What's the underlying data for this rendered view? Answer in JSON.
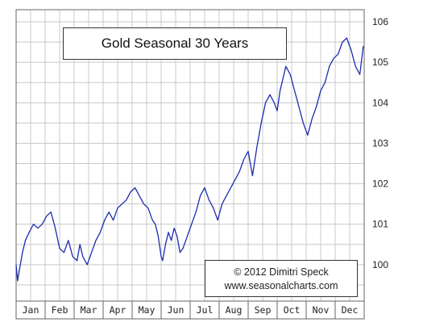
{
  "chart_data": {
    "type": "line",
    "title": "Gold Seasonal 30 Years",
    "credit_line1": "© 2012  Dimitri Speck",
    "credit_line2": "www.seasonalcharts.com",
    "xlabel": "",
    "ylabel": "",
    "categories": [
      "Jan",
      "Feb",
      "Mar",
      "Apr",
      "May",
      "Jun",
      "Jul",
      "Aug",
      "Sep",
      "Oct",
      "Nov",
      "Dec"
    ],
    "ylim": [
      99.1,
      106.3
    ],
    "yticks": [
      100,
      101,
      102,
      103,
      104,
      105,
      106
    ],
    "grid": true,
    "line_color": "#1c2bb0",
    "series": [
      {
        "x": [
          0.0,
          0.05,
          0.12,
          0.22,
          0.32,
          0.45,
          0.6,
          0.75,
          0.9,
          1.05,
          1.2,
          1.35,
          1.5,
          1.65,
          1.8,
          1.95,
          2.1,
          2.2,
          2.3,
          2.45,
          2.6,
          2.75,
          2.9,
          3.05,
          3.2,
          3.35,
          3.5,
          3.65,
          3.8,
          3.95,
          4.1,
          4.25,
          4.4,
          4.55,
          4.7,
          4.8,
          4.9,
          5.0,
          5.05,
          5.15,
          5.25,
          5.35,
          5.45,
          5.55,
          5.65,
          5.75,
          5.9,
          6.05,
          6.2,
          6.35,
          6.5,
          6.65,
          6.8,
          6.95,
          7.1,
          7.25,
          7.4,
          7.55,
          7.7,
          7.85,
          8.0,
          8.15,
          8.3,
          8.45,
          8.6,
          8.75,
          8.9,
          9.0,
          9.1,
          9.2,
          9.3,
          9.45,
          9.6,
          9.75,
          9.9,
          10.05,
          10.2,
          10.35,
          10.5,
          10.65,
          10.8,
          10.95,
          11.1,
          11.25,
          11.4,
          11.55,
          11.7,
          11.85,
          11.97
        ],
        "values": [
          100.0,
          99.6,
          99.9,
          100.3,
          100.6,
          100.8,
          101.0,
          100.9,
          101.0,
          101.2,
          101.3,
          100.9,
          100.4,
          100.3,
          100.6,
          100.2,
          100.1,
          100.5,
          100.2,
          100.0,
          100.3,
          100.6,
          100.8,
          101.1,
          101.3,
          101.1,
          101.4,
          101.5,
          101.6,
          101.8,
          101.9,
          101.7,
          101.5,
          101.4,
          101.1,
          101.0,
          100.7,
          100.2,
          100.1,
          100.5,
          100.8,
          100.6,
          100.9,
          100.7,
          100.3,
          100.4,
          100.7,
          101.0,
          101.3,
          101.7,
          101.9,
          101.6,
          101.4,
          101.1,
          101.5,
          101.7,
          101.9,
          102.1,
          102.3,
          102.6,
          102.8,
          102.2,
          102.9,
          103.5,
          104.0,
          104.2,
          104.0,
          103.8,
          104.3,
          104.6,
          104.9,
          104.7,
          104.3,
          103.9,
          103.5,
          103.2,
          103.6,
          103.9,
          104.3,
          104.5,
          104.9,
          105.1,
          105.2,
          105.5,
          105.6,
          105.3,
          104.9,
          104.7,
          105.4
        ]
      }
    ]
  }
}
